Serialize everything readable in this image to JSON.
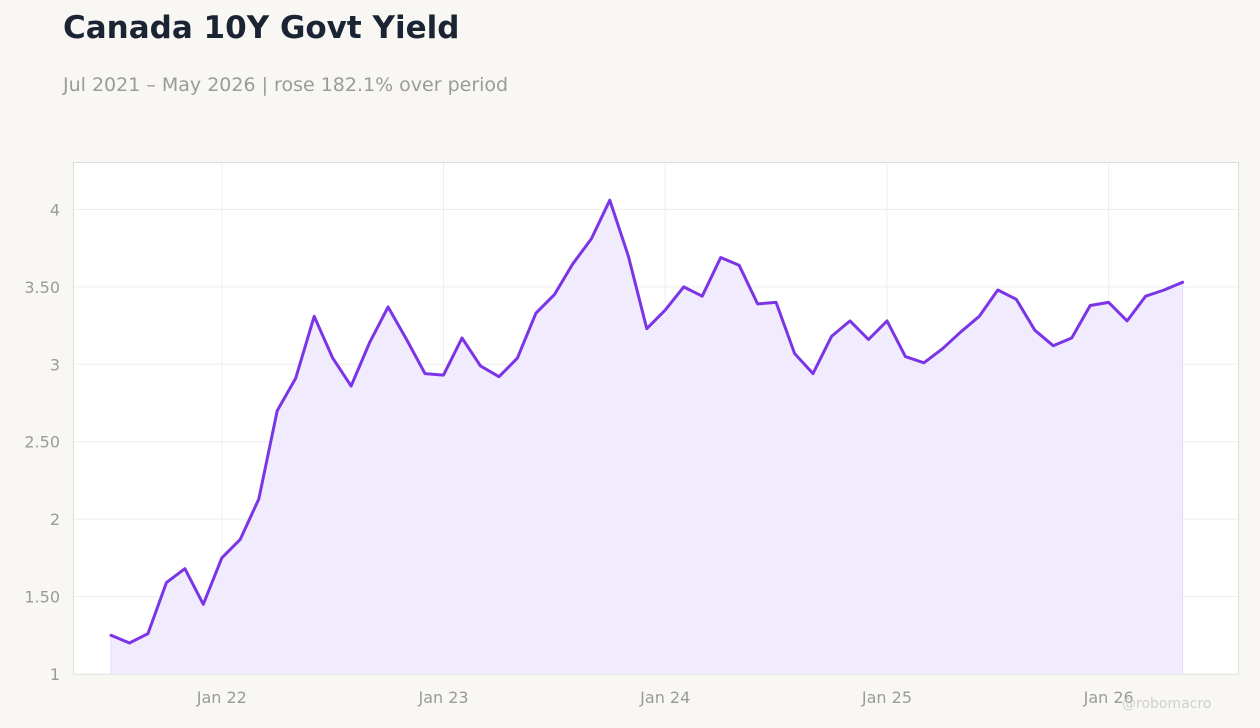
{
  "header": {
    "title": "Canada 10Y Govt Yield",
    "subtitle": "Jul 2021 – May 2026 | rose 182.1% over period"
  },
  "watermark": "@robomacro",
  "colors": {
    "line": "#7b35e6",
    "fill": "#f1ecfd",
    "background": "#f9f7f4",
    "plot_background": "#ffffff",
    "grid": "#eeeeee"
  },
  "chart_data": {
    "type": "area",
    "title": "Canada 10Y Govt Yield",
    "xlabel": "",
    "ylabel": "",
    "grid": true,
    "legend": "none",
    "ylim": [
      1,
      4.3
    ],
    "xlim": [
      "2021-05",
      "2026-08"
    ],
    "y_ticks": [
      1,
      1.5,
      2,
      2.5,
      3,
      3.5,
      4
    ],
    "y_tick_labels": [
      "1",
      "1.50",
      "2",
      "2.50",
      "3",
      "3.50",
      "4"
    ],
    "x_ticks": [
      "2022-01",
      "2023-01",
      "2024-01",
      "2025-01",
      "2026-01"
    ],
    "x_tick_labels": [
      "Jan 22",
      "Jan 23",
      "Jan 24",
      "Jan 25",
      "Jan 26"
    ],
    "series": [
      {
        "x": [
          "2021-07",
          "2021-08",
          "2021-09",
          "2021-10",
          "2021-11",
          "2021-12",
          "2022-01",
          "2022-02",
          "2022-03",
          "2022-04",
          "2022-05",
          "2022-06",
          "2022-07",
          "2022-08",
          "2022-09",
          "2022-10",
          "2022-11",
          "2022-12",
          "2023-01",
          "2023-02",
          "2023-03",
          "2023-04",
          "2023-05",
          "2023-06",
          "2023-07",
          "2023-08",
          "2023-09",
          "2023-10",
          "2023-11",
          "2023-12",
          "2024-01",
          "2024-02",
          "2024-03",
          "2024-04",
          "2024-05",
          "2024-06",
          "2024-07",
          "2024-08",
          "2024-09",
          "2024-10",
          "2024-11",
          "2024-12",
          "2025-01",
          "2025-02",
          "2025-03",
          "2025-04",
          "2025-05",
          "2025-06",
          "2025-07",
          "2025-08",
          "2025-09",
          "2025-10",
          "2025-11",
          "2025-12",
          "2026-01",
          "2026-02",
          "2026-03",
          "2026-04",
          "2026-05"
        ],
        "values": [
          1.25,
          1.2,
          1.26,
          1.59,
          1.68,
          1.45,
          1.75,
          1.87,
          2.13,
          2.7,
          2.91,
          3.31,
          3.04,
          2.86,
          3.14,
          3.37,
          3.16,
          2.94,
          2.93,
          3.17,
          2.99,
          2.92,
          3.04,
          3.33,
          3.45,
          3.65,
          3.81,
          4.06,
          3.7,
          3.23,
          3.35,
          3.5,
          3.44,
          3.69,
          3.64,
          3.39,
          3.4,
          3.07,
          2.94,
          3.18,
          3.28,
          3.16,
          3.28,
          3.05,
          3.01,
          3.1,
          3.21,
          3.31,
          3.48,
          3.42,
          3.22,
          3.12,
          3.17,
          3.38,
          3.4,
          3.28,
          3.44,
          3.48,
          3.53
        ]
      }
    ]
  }
}
